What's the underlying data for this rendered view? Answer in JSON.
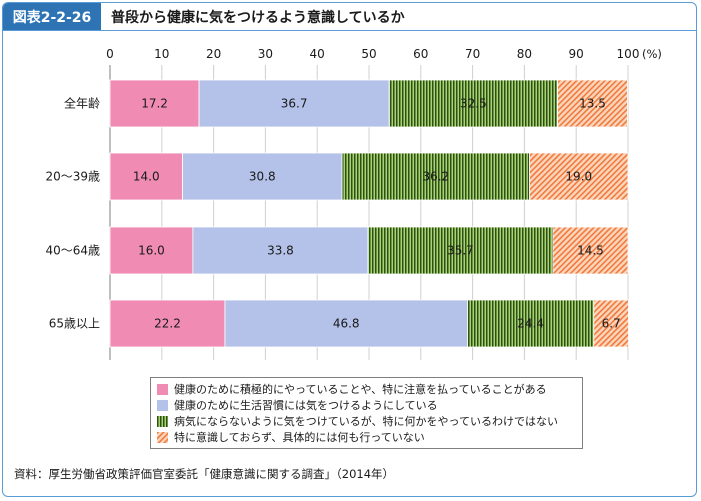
{
  "header": {
    "figure_label": "図表2-2-26",
    "title": "普段から健康に気をつけるよう意識しているか"
  },
  "source": "資料：厚生労働省政策評価官室委託「健康意識に関する調査」（2014年）",
  "chart_data": {
    "type": "bar",
    "orientation": "horizontal",
    "stacked": true,
    "categories": [
      "全年齢",
      "20～39歳",
      "40～64歳",
      "65歳以上"
    ],
    "series": [
      {
        "name": "健康のために積極的にやっていることや、特に注意を払っていることがある",
        "values": [
          17.2,
          14.0,
          16.0,
          22.2
        ],
        "color": "#f08cb4",
        "pattern": "solid"
      },
      {
        "name": "健康のために生活習慣には気をつけるようにしている",
        "values": [
          36.7,
          30.8,
          33.8,
          46.8
        ],
        "color": "#b4c1e8",
        "pattern": "solid"
      },
      {
        "name": "病気にならないように気をつけているが、特に何かをやっているわけではない",
        "values": [
          32.5,
          36.2,
          35.7,
          24.4
        ],
        "color": "#7ab648",
        "pattern": "vertical-stripes"
      },
      {
        "name": "特に意識しておらず、具体的には何も行っていない",
        "values": [
          13.5,
          19.0,
          14.5,
          6.7
        ],
        "color": "#f5a070",
        "pattern": "diagonal-hatch"
      }
    ],
    "xlim": [
      0,
      100
    ],
    "xticks": [
      "0",
      "10",
      "20",
      "30",
      "40",
      "50",
      "60",
      "70",
      "80",
      "90",
      "100"
    ],
    "unit": "(%)",
    "grid": true,
    "legend_position": "bottom"
  }
}
